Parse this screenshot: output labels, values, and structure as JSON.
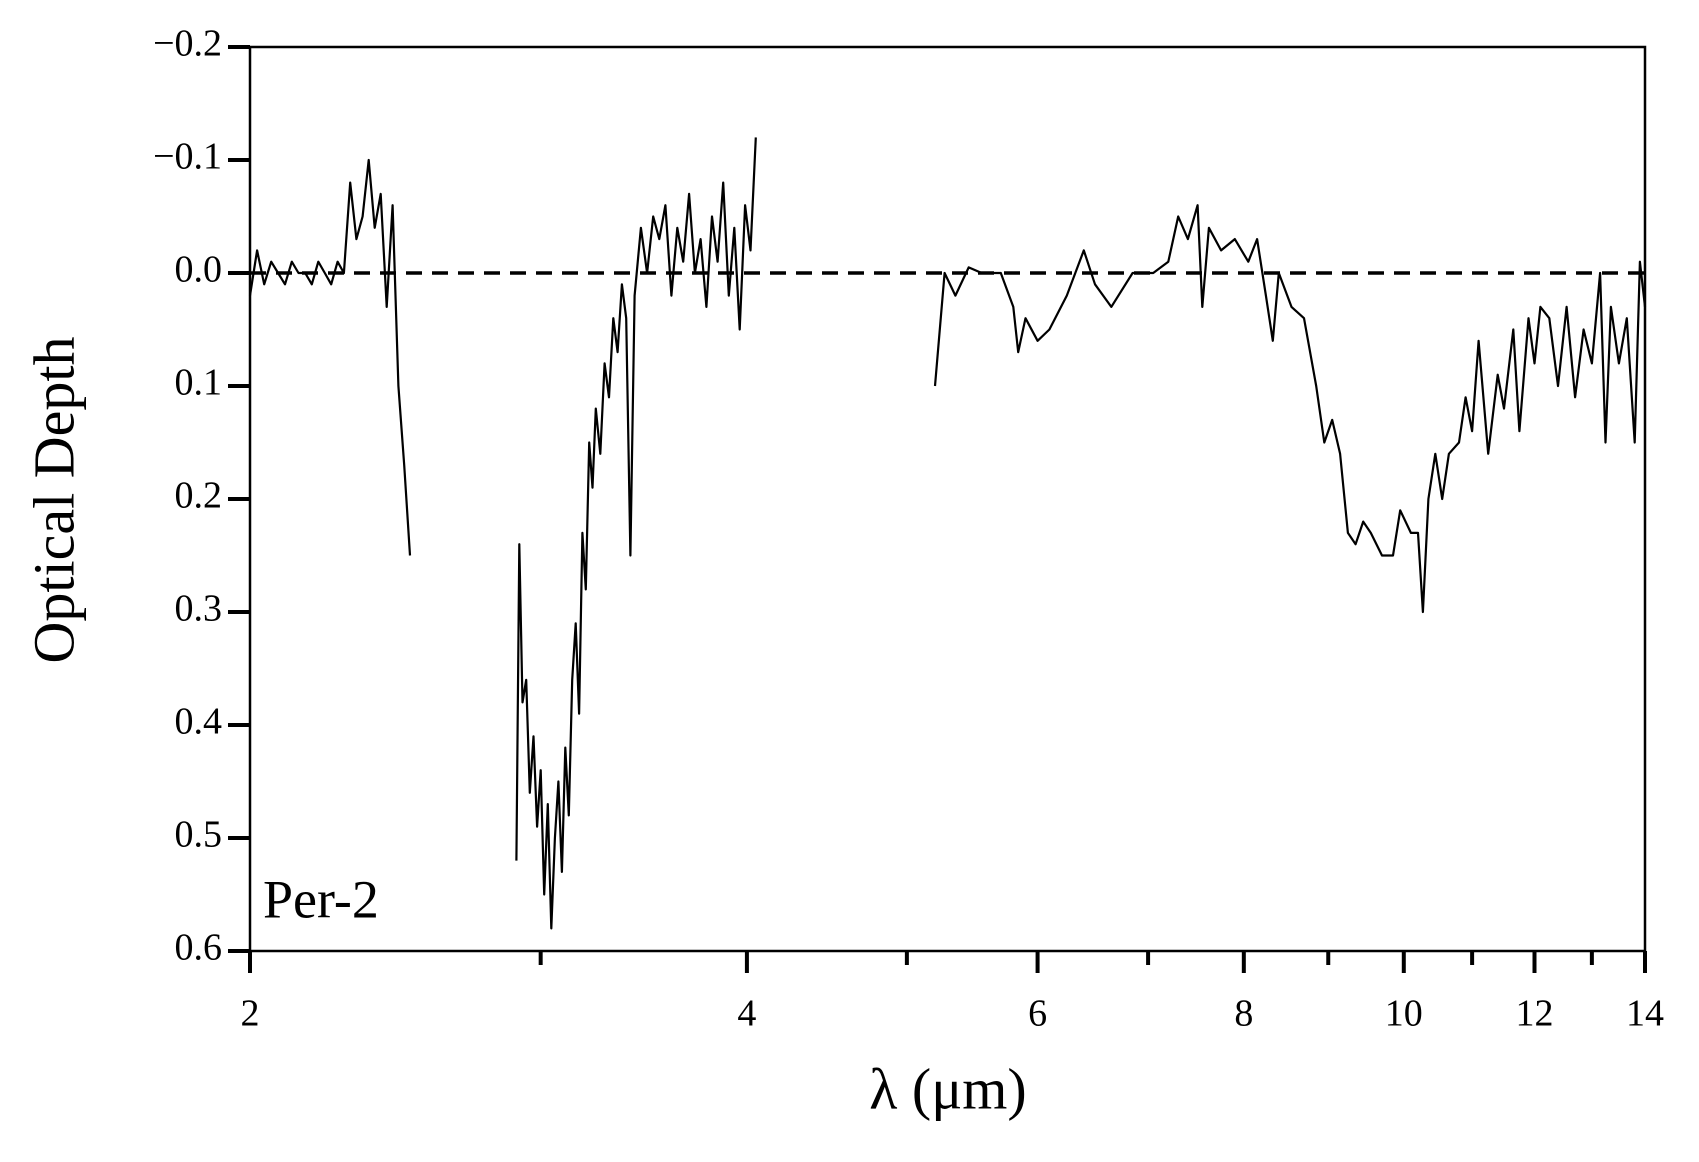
{
  "chart_data": {
    "type": "line",
    "xlabel": "λ (μm)",
    "ylabel": "Optical Depth",
    "annotation": "Per-2",
    "color": "#000000",
    "xscale": "log",
    "y_inverted": true,
    "hline": 0,
    "xlim": [
      2,
      14
    ],
    "xticks": [
      2,
      4,
      6,
      8,
      10,
      12,
      14
    ],
    "xminorticks": [
      3,
      5,
      7,
      9,
      11,
      13
    ],
    "ylim": [
      -0.2,
      0.6
    ],
    "yticks": [
      {
        "value": -0.2,
        "label": "−0.2"
      },
      {
        "value": -0.1,
        "label": "−0.1"
      },
      {
        "value": 0,
        "label": "0.0"
      },
      0.1,
      0.2,
      0.3,
      0.4,
      0.5,
      0.6
    ],
    "x": [
      2.0,
      2.02,
      2.04,
      2.06,
      2.08,
      2.1,
      2.12,
      2.14,
      2.16,
      2.18,
      2.2,
      2.22,
      2.24,
      2.26,
      2.28,
      2.3,
      2.32,
      2.34,
      2.36,
      2.38,
      2.4,
      2.42,
      2.44,
      2.46,
      2.48,
      2.5,
      2.7,
      2.9,
      2.912,
      2.925,
      2.94,
      2.955,
      2.97,
      2.985,
      3.0,
      3.015,
      3.03,
      3.045,
      3.06,
      3.075,
      3.09,
      3.105,
      3.12,
      3.135,
      3.15,
      3.165,
      3.18,
      3.195,
      3.21,
      3.225,
      3.24,
      3.26,
      3.28,
      3.3,
      3.32,
      3.34,
      3.36,
      3.38,
      3.4,
      3.42,
      3.45,
      3.48,
      3.51,
      3.54,
      3.57,
      3.6,
      3.63,
      3.66,
      3.69,
      3.72,
      3.75,
      3.78,
      3.81,
      3.84,
      3.87,
      3.9,
      3.93,
      3.96,
      3.99,
      4.02,
      4.05,
      4.6,
      5.2,
      5.27,
      5.35,
      5.45,
      5.55,
      5.7,
      5.8,
      5.84,
      5.9,
      6.0,
      6.1,
      6.25,
      6.4,
      6.5,
      6.65,
      6.85,
      7.05,
      7.2,
      7.3,
      7.4,
      7.5,
      7.55,
      7.62,
      7.75,
      7.9,
      8.05,
      8.15,
      8.25,
      8.33,
      8.4,
      8.55,
      8.7,
      8.85,
      8.95,
      9.05,
      9.15,
      9.25,
      9.35,
      9.45,
      9.55,
      9.7,
      9.85,
      9.95,
      10.1,
      10.2,
      10.27,
      10.35,
      10.45,
      10.55,
      10.65,
      10.8,
      10.9,
      11.0,
      11.1,
      11.25,
      11.4,
      11.5,
      11.65,
      11.75,
      11.9,
      12.0,
      12.1,
      12.25,
      12.4,
      12.55,
      12.7,
      12.85,
      13.0,
      13.15,
      13.25,
      13.35,
      13.5,
      13.65,
      13.8,
      13.9,
      14.0
    ],
    "values": [
      0.02,
      -0.02,
      0.01,
      -0.01,
      0.0,
      0.01,
      -0.01,
      0.0,
      0.0,
      0.01,
      -0.01,
      0.0,
      0.01,
      -0.01,
      0.0,
      -0.08,
      -0.03,
      -0.05,
      -0.1,
      -0.04,
      -0.07,
      0.03,
      -0.06,
      0.1,
      0.17,
      0.25,
      null,
      0.52,
      0.24,
      0.38,
      0.36,
      0.46,
      0.41,
      0.49,
      0.44,
      0.55,
      0.47,
      0.58,
      0.5,
      0.45,
      0.53,
      0.42,
      0.48,
      0.36,
      0.31,
      0.39,
      0.23,
      0.28,
      0.15,
      0.19,
      0.12,
      0.16,
      0.08,
      0.11,
      0.04,
      0.07,
      0.01,
      0.04,
      0.25,
      0.02,
      -0.04,
      0.0,
      -0.05,
      -0.03,
      -0.06,
      0.02,
      -0.04,
      -0.01,
      -0.07,
      0.0,
      -0.03,
      0.03,
      -0.05,
      -0.01,
      -0.08,
      0.02,
      -0.04,
      0.05,
      -0.06,
      -0.02,
      -0.12,
      null,
      0.1,
      0.0,
      0.02,
      -0.005,
      0.0,
      0.0,
      0.03,
      0.07,
      0.04,
      0.06,
      0.05,
      0.02,
      -0.02,
      0.01,
      0.03,
      0.0,
      0.0,
      -0.01,
      -0.05,
      -0.03,
      -0.06,
      0.03,
      -0.04,
      -0.02,
      -0.03,
      -0.01,
      -0.03,
      0.02,
      0.06,
      0.0,
      0.03,
      0.04,
      0.1,
      0.15,
      0.13,
      0.16,
      0.23,
      0.24,
      0.22,
      0.23,
      0.25,
      0.25,
      0.21,
      0.23,
      0.23,
      0.3,
      0.2,
      0.16,
      0.2,
      0.16,
      0.15,
      0.11,
      0.14,
      0.06,
      0.16,
      0.09,
      0.12,
      0.05,
      0.14,
      0.04,
      0.08,
      0.03,
      0.04,
      0.1,
      0.03,
      0.11,
      0.05,
      0.08,
      0.0,
      0.15,
      0.03,
      0.08,
      0.04,
      0.15,
      -0.01,
      0.03
    ]
  }
}
